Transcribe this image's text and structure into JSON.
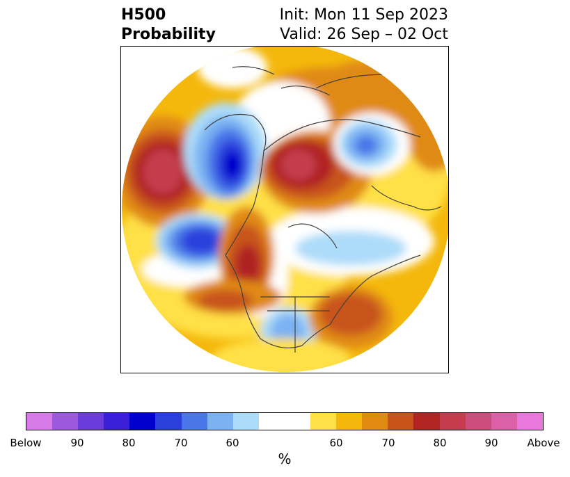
{
  "title": {
    "variable": "H500",
    "product": "Probability",
    "init": "Init: Mon 11 Sep 2023",
    "valid": "Valid: 26 Sep – 02 Oct"
  },
  "colorbar": {
    "colors": [
      "#d67ae8",
      "#9b59e0",
      "#6a3ddb",
      "#3a1fd6",
      "#0000cc",
      "#2a3fdc",
      "#4a76e8",
      "#7ab2f2",
      "#addcf9",
      "#ffffff",
      "#ffe046",
      "#f4b80c",
      "#e08a12",
      "#c8541a",
      "#b02424",
      "#c43c4e",
      "#cc4c7c",
      "#dc60a8",
      "#e878dc"
    ],
    "tick_labels": [
      "Below",
      "90",
      "80",
      "70",
      "60",
      "60",
      "70",
      "80",
      "90",
      "Above"
    ],
    "unit_label": "%"
  }
}
